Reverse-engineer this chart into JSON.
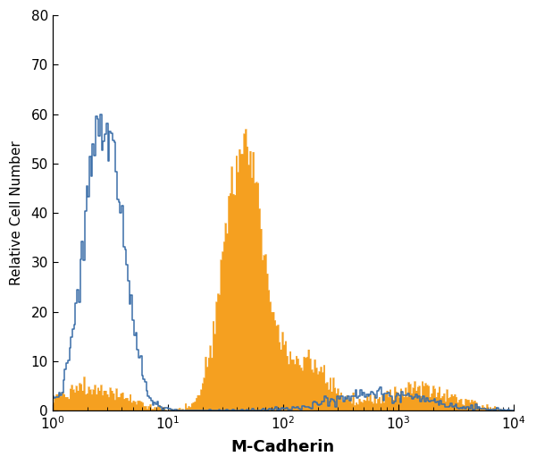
{
  "xlabel": "M-Cadherin",
  "ylabel": "Relative Cell Number",
  "xlim": [
    1,
    10000
  ],
  "ylim": [
    0,
    80
  ],
  "yticks": [
    0,
    10,
    20,
    30,
    40,
    50,
    60,
    70,
    80
  ],
  "blue_color": "#3a6ea8",
  "orange_color": "#f5a020",
  "blue_lw": 1.1,
  "figsize": [
    6.0,
    5.2
  ],
  "dpi": 100,
  "background_color": "#ffffff",
  "xlabel_fontsize": 13,
  "ylabel_fontsize": 11,
  "tick_fontsize": 11,
  "xlabel_fontweight": "bold",
  "n_bins": 300
}
